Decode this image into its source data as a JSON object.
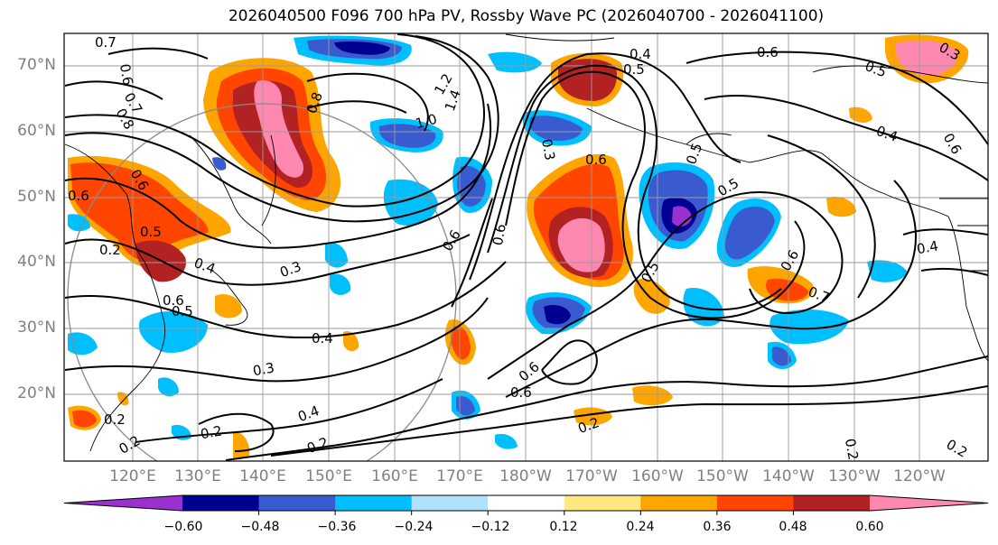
{
  "title": "2026040500 F096 700 hPa PV, Rossby Wave PC (2026040700 - 2026041100)",
  "lat_labels": [
    "70°N",
    "60°N",
    "50°N",
    "40°N",
    "30°N",
    "20°N"
  ],
  "lon_labels": [
    "120°E",
    "130°E",
    "140°E",
    "150°E",
    "160°E",
    "170°E",
    "180°W",
    "170°W",
    "160°W",
    "150°W",
    "140°W",
    "130°W",
    "120°W"
  ],
  "colorbar": {
    "tick_labels": [
      "−0.60",
      "−0.48",
      "−0.36",
      "−0.24",
      "−0.12",
      "0.12",
      "0.24",
      "0.36",
      "0.48",
      "0.60"
    ],
    "colors": [
      "#9b30d0",
      "#000090",
      "#3a5bd0",
      "#00bfff",
      "#b0e2ff",
      "#ffffff",
      "#ffe880",
      "#ffa500",
      "#ff4500",
      "#b22222",
      "#ff88b0"
    ]
  },
  "contour_labels": [
    "0.7",
    "0.6",
    "0.7",
    "0.8",
    "1.2",
    "1.4",
    "0.5",
    "0.4",
    "0.6",
    "1.0",
    "0.5",
    "0.3",
    "0.6",
    "0.8",
    "0.6",
    "0.6",
    "0.5",
    "0.3",
    "0.6",
    "0.6",
    "0.4",
    "0.2",
    "0.5",
    "0.4",
    "0.3",
    "0.6",
    "0.5",
    "0.6",
    "0.5",
    "0.4",
    "0.6",
    "0.7",
    "0.4",
    "0.3",
    "0.2",
    "0.4",
    "0.2",
    "0.6",
    "0.2",
    "0.2",
    "0.2",
    "0.2",
    "0.2",
    "0.6",
    "0.5"
  ]
}
